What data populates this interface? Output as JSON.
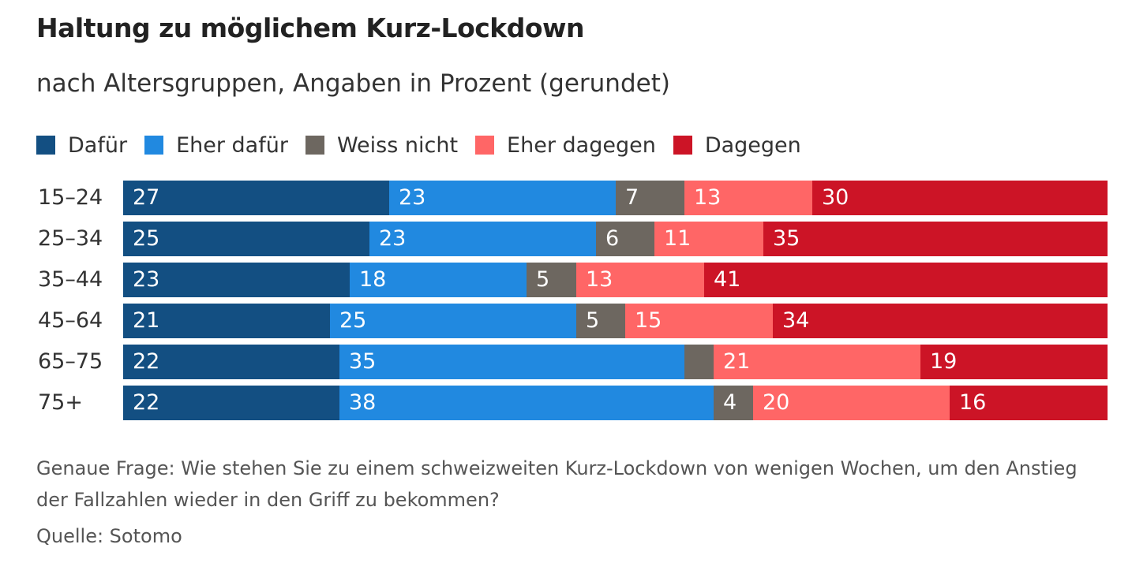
{
  "chart_data": {
    "type": "bar",
    "orientation": "horizontal",
    "stacked": true,
    "title": "Haltung zu möglichem Kurz-Lockdown",
    "subtitle": "nach Altersgruppen, Angaben in Prozent (gerundet)",
    "categories": [
      "15–24",
      "25–34",
      "35–44",
      "45–64",
      "65–75",
      "75+"
    ],
    "series": [
      {
        "name": "Dafür",
        "color": "#134f82",
        "values": [
          27,
          25,
          23,
          21,
          22,
          22
        ],
        "labels": [
          "27",
          "25",
          "23",
          "21",
          "22",
          "22"
        ]
      },
      {
        "name": "Eher dafür",
        "color": "#2189e0",
        "values": [
          23,
          23,
          18,
          25,
          35,
          38
        ],
        "labels": [
          "23",
          "23",
          "18",
          "25",
          "35",
          "38"
        ]
      },
      {
        "name": "Weiss nicht",
        "color": "#6d6760",
        "values": [
          7,
          6,
          5,
          5,
          3,
          4
        ],
        "labels": [
          "7",
          "6",
          "5",
          "5",
          "",
          "4"
        ]
      },
      {
        "name": "Eher dagegen",
        "color": "#ff6666",
        "values": [
          13,
          11,
          13,
          15,
          21,
          20
        ],
        "labels": [
          "13",
          "11",
          "13",
          "15",
          "21",
          "20"
        ]
      },
      {
        "name": "Dagegen",
        "color": "#cc1426",
        "values": [
          30,
          35,
          41,
          34,
          19,
          16
        ],
        "labels": [
          "30",
          "35",
          "41",
          "34",
          "19",
          "16"
        ]
      }
    ],
    "legend_position": "top-left",
    "grid": false
  },
  "footer": {
    "question": "Genaue Frage: Wie stehen Sie zu einem schweizweiten Kurz-Lockdown von wenigen Wochen, um den Anstieg der Fallzahlen wieder in den Griff zu bekommen?",
    "source": "Quelle: Sotomo"
  }
}
